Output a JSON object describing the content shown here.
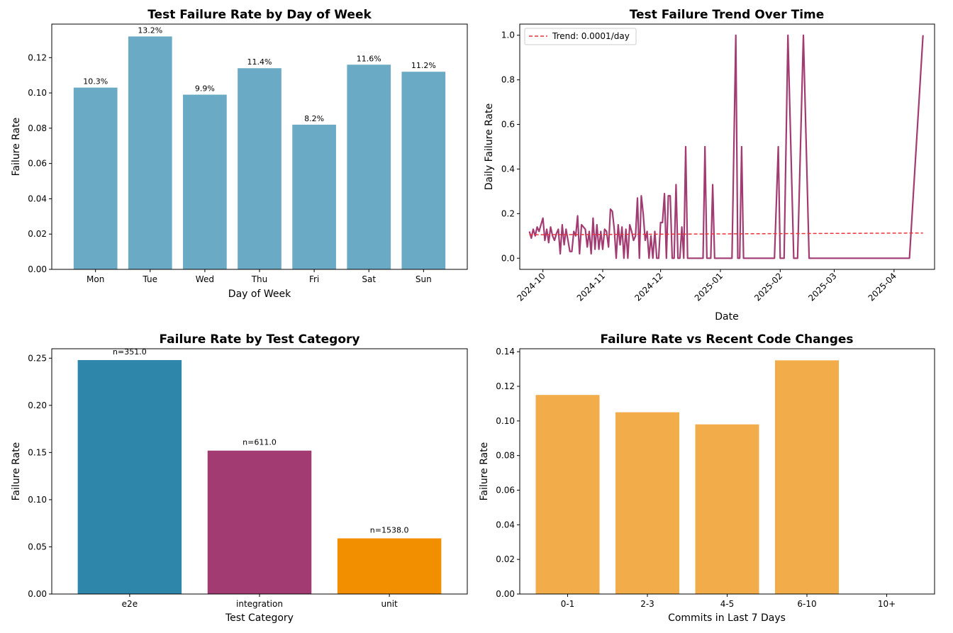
{
  "chart_data": [
    {
      "id": "dow",
      "type": "bar",
      "title": "Test Failure Rate by Day of Week",
      "xlabel": "Day of Week",
      "ylabel": "Failure Rate",
      "categories": [
        "Mon",
        "Tue",
        "Wed",
        "Thu",
        "Fri",
        "Sat",
        "Sun"
      ],
      "values": [
        0.103,
        0.132,
        0.099,
        0.114,
        0.082,
        0.116,
        0.112
      ],
      "data_labels": [
        "10.3%",
        "13.2%",
        "9.9%",
        "11.4%",
        "8.2%",
        "11.6%",
        "11.2%"
      ],
      "ylim": [
        0,
        0.139
      ],
      "yticks": [
        0.0,
        0.02,
        0.04,
        0.06,
        0.08,
        0.1,
        0.12
      ],
      "ytick_labels": [
        "0.00",
        "0.02",
        "0.04",
        "0.06",
        "0.08",
        "0.10",
        "0.12"
      ],
      "color": "#6aaac4",
      "grid": false
    },
    {
      "id": "trend",
      "type": "line",
      "title": "Test Failure Trend Over Time",
      "xlabel": "Date",
      "ylabel": "Daily Failure Rate",
      "xlim": [
        "2024-09-19",
        "2025-04-22"
      ],
      "ylim": [
        -0.05,
        1.05
      ],
      "xticks": [
        "2024-10-01",
        "2024-11-01",
        "2024-12-01",
        "2025-01-01",
        "2025-02-01",
        "2025-03-01",
        "2025-04-01"
      ],
      "xtick_labels": [
        "2024-10",
        "2024-11",
        "2024-12",
        "2025-01",
        "2025-02",
        "2025-03",
        "2025-04"
      ],
      "yticks": [
        0.0,
        0.2,
        0.4,
        0.6,
        0.8,
        1.0
      ],
      "ytick_labels": [
        "0.0",
        "0.2",
        "0.4",
        "0.6",
        "0.8",
        "1.0"
      ],
      "grid": false,
      "legend_position": "top-left",
      "series": [
        {
          "kind": "line",
          "color": "#a23b72",
          "points": [
            [
              "2024-09-24",
              0.12
            ],
            [
              "2024-09-25",
              0.09
            ],
            [
              "2024-09-26",
              0.13
            ],
            [
              "2024-09-27",
              0.1
            ],
            [
              "2024-09-28",
              0.14
            ],
            [
              "2024-09-29",
              0.12
            ],
            [
              "2024-09-30",
              0.15
            ],
            [
              "2024-10-01",
              0.18
            ],
            [
              "2024-10-02",
              0.08
            ],
            [
              "2024-10-03",
              0.13
            ],
            [
              "2024-10-04",
              0.07
            ],
            [
              "2024-10-05",
              0.14
            ],
            [
              "2024-10-06",
              0.1
            ],
            [
              "2024-10-07",
              0.08
            ],
            [
              "2024-10-08",
              0.11
            ],
            [
              "2024-10-09",
              0.13
            ],
            [
              "2024-10-10",
              0.02
            ],
            [
              "2024-10-11",
              0.15
            ],
            [
              "2024-10-12",
              0.06
            ],
            [
              "2024-10-13",
              0.13
            ],
            [
              "2024-10-14",
              0.08
            ],
            [
              "2024-10-15",
              0.03
            ],
            [
              "2024-10-16",
              0.03
            ],
            [
              "2024-10-17",
              0.12
            ],
            [
              "2024-10-18",
              0.1
            ],
            [
              "2024-10-19",
              0.19
            ],
            [
              "2024-10-20",
              0.02
            ],
            [
              "2024-10-21",
              0.15
            ],
            [
              "2024-10-22",
              0.14
            ],
            [
              "2024-10-23",
              0.13
            ],
            [
              "2024-10-24",
              0.05
            ],
            [
              "2024-10-25",
              0.12
            ],
            [
              "2024-10-26",
              0.02
            ],
            [
              "2024-10-27",
              0.18
            ],
            [
              "2024-10-28",
              0.04
            ],
            [
              "2024-10-29",
              0.15
            ],
            [
              "2024-10-30",
              0.04
            ],
            [
              "2024-10-31",
              0.12
            ],
            [
              "2024-11-01",
              0.04
            ],
            [
              "2024-11-02",
              0.13
            ],
            [
              "2024-11-03",
              0.12
            ],
            [
              "2024-11-04",
              0.05
            ],
            [
              "2024-11-05",
              0.22
            ],
            [
              "2024-11-06",
              0.21
            ],
            [
              "2024-11-07",
              0.13
            ],
            [
              "2024-11-08",
              0.0
            ],
            [
              "2024-11-09",
              0.15
            ],
            [
              "2024-11-10",
              0.06
            ],
            [
              "2024-11-11",
              0.14
            ],
            [
              "2024-11-12",
              0.0
            ],
            [
              "2024-11-13",
              0.13
            ],
            [
              "2024-11-14",
              0.0
            ],
            [
              "2024-11-15",
              0.15
            ],
            [
              "2024-11-16",
              0.12
            ],
            [
              "2024-11-17",
              0.08
            ],
            [
              "2024-11-18",
              0.1
            ],
            [
              "2024-11-19",
              0.27
            ],
            [
              "2024-11-20",
              0.0
            ],
            [
              "2024-11-21",
              0.28
            ],
            [
              "2024-11-22",
              0.2
            ],
            [
              "2024-11-23",
              0.08
            ],
            [
              "2024-11-24",
              0.12
            ],
            [
              "2024-11-25",
              0.0
            ],
            [
              "2024-11-26",
              0.1
            ],
            [
              "2024-11-27",
              0.0
            ],
            [
              "2024-11-28",
              0.12
            ],
            [
              "2024-11-29",
              0.0
            ],
            [
              "2024-11-30",
              0.0
            ],
            [
              "2024-12-01",
              0.16
            ],
            [
              "2024-12-02",
              0.16
            ],
            [
              "2024-12-03",
              0.29
            ],
            [
              "2024-12-04",
              0.0
            ],
            [
              "2024-12-05",
              0.28
            ],
            [
              "2024-12-06",
              0.28
            ],
            [
              "2024-12-07",
              0.0
            ],
            [
              "2024-12-08",
              0.0
            ],
            [
              "2024-12-09",
              0.33
            ],
            [
              "2024-12-10",
              0.0
            ],
            [
              "2024-12-11",
              0.0
            ],
            [
              "2024-12-12",
              0.14
            ],
            [
              "2024-12-13",
              0.0
            ],
            [
              "2024-12-14",
              0.5
            ],
            [
              "2024-12-15",
              0.0
            ],
            [
              "2024-12-23",
              0.0
            ],
            [
              "2024-12-24",
              0.5
            ],
            [
              "2024-12-25",
              0.0
            ],
            [
              "2024-12-27",
              0.0
            ],
            [
              "2024-12-28",
              0.33
            ],
            [
              "2024-12-29",
              0.0
            ],
            [
              "2025-01-07",
              0.0
            ],
            [
              "2025-01-09",
              1.0
            ],
            [
              "2025-01-10",
              0.0
            ],
            [
              "2025-01-11",
              0.0
            ],
            [
              "2025-01-12",
              0.5
            ],
            [
              "2025-01-13",
              0.0
            ],
            [
              "2025-01-29",
              0.0
            ],
            [
              "2025-01-31",
              0.5
            ],
            [
              "2025-02-01",
              0.0
            ],
            [
              "2025-02-03",
              0.0
            ],
            [
              "2025-02-05",
              1.0
            ],
            [
              "2025-02-08",
              0.0
            ],
            [
              "2025-02-10",
              0.0
            ],
            [
              "2025-02-13",
              1.0
            ],
            [
              "2025-02-16",
              0.0
            ],
            [
              "2025-04-09",
              0.0
            ],
            [
              "2025-04-16",
              1.0
            ]
          ]
        },
        {
          "kind": "dashed",
          "name": "Trend: 0.0001/day",
          "color": "#e8343a",
          "points": [
            [
              "2024-09-24",
              0.105
            ],
            [
              "2025-04-16",
              0.113
            ]
          ]
        }
      ]
    },
    {
      "id": "category",
      "type": "bar",
      "title": "Failure Rate by Test Category",
      "xlabel": "Test Category",
      "ylabel": "Failure Rate",
      "categories": [
        "e2e",
        "integration",
        "unit"
      ],
      "values": [
        0.248,
        0.152,
        0.059
      ],
      "data_labels": [
        "n=351.0",
        "n=611.0",
        "n=1538.0"
      ],
      "colors": [
        "#2e86ab",
        "#a23b72",
        "#f18f01"
      ],
      "ylim": [
        0,
        0.26
      ],
      "yticks": [
        0.0,
        0.05,
        0.1,
        0.15,
        0.2,
        0.25
      ],
      "ytick_labels": [
        "0.00",
        "0.05",
        "0.10",
        "0.15",
        "0.20",
        "0.25"
      ],
      "grid": false
    },
    {
      "id": "commits",
      "type": "bar",
      "title": "Failure Rate vs Recent Code Changes",
      "xlabel": "Commits in Last 7 Days",
      "ylabel": "Failure Rate",
      "categories": [
        "0-1",
        "2-3",
        "4-5",
        "6-10",
        "10+"
      ],
      "values": [
        0.115,
        0.105,
        0.098,
        0.135,
        null
      ],
      "ylim": [
        0,
        0.1417
      ],
      "yticks": [
        0.0,
        0.02,
        0.04,
        0.06,
        0.08,
        0.1,
        0.12,
        0.14
      ],
      "ytick_labels": [
        "0.00",
        "0.02",
        "0.04",
        "0.06",
        "0.08",
        "0.10",
        "0.12",
        "0.14"
      ],
      "color": "#f2ac4a",
      "grid": false
    }
  ]
}
